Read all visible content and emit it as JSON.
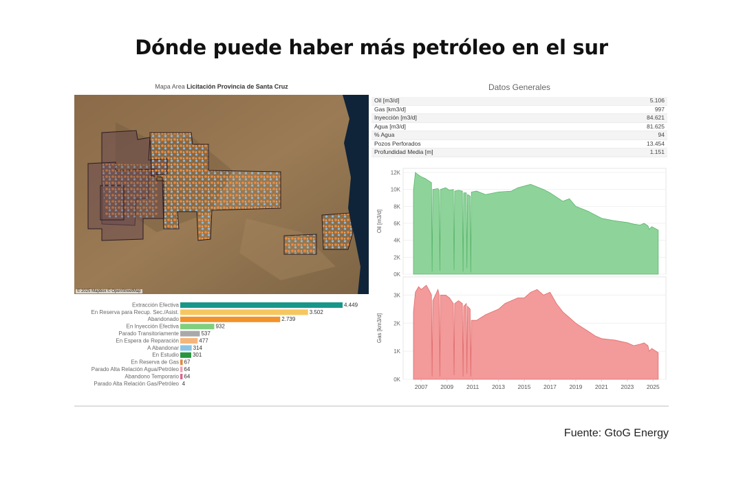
{
  "title": "Dónde puede haber más petróleo en el sur",
  "map": {
    "title_prefix": "Mapa Area",
    "title_bold": "Licitación Provincia de Santa Cruz",
    "credit": "© 2025 Mapbox © OpenStreetMap"
  },
  "datos": {
    "title": "Datos Generales",
    "rows": [
      {
        "label": "Oil [m3/d]",
        "value": "5.106"
      },
      {
        "label": "Gas [km3/d]",
        "value": "997"
      },
      {
        "label": "Inyección [m3/d]",
        "value": "84.621"
      },
      {
        "label": "Agua [m3/d]",
        "value": "81.625"
      },
      {
        "label": "% Agua",
        "value": "94"
      },
      {
        "label": "Pozos Perforados",
        "value": "13.454"
      },
      {
        "label": "Profundidad Media [m]",
        "value": "1.151"
      }
    ]
  },
  "source": "Fuente: GtoG Energy",
  "colors": {
    "oil_fill": "#8ed49a",
    "oil_stroke": "#58b46a",
    "gas_fill": "#f39a9a",
    "gas_stroke": "#e06a6a"
  },
  "chart_data": [
    {
      "type": "bar",
      "orientation": "horizontal",
      "categories": [
        "Extracción Efectiva",
        "En Reserva para Recup. Sec./Asist.",
        "Abandonado",
        "En Inyección Efectiva",
        "Parado Transitoriamente",
        "En Espera de Reparación",
        "A Abandonar",
        "En Estudio",
        "En Reserva de Gas",
        "Parado Alta Relación Agua/Petróleo",
        "Abandono Temporario",
        "Parado Alta Relación Gas/Petróleo"
      ],
      "values": [
        4449,
        3502,
        2739,
        932,
        537,
        477,
        314,
        301,
        67,
        64,
        64,
        4
      ],
      "value_labels": [
        "4.449",
        "3.502",
        "2.739",
        "932",
        "537",
        "477",
        "314",
        "301",
        "67",
        "64",
        "64",
        "4"
      ],
      "colors": [
        "#17968a",
        "#f6c760",
        "#f2922a",
        "#7fcf7f",
        "#a9a9a9",
        "#f5b67b",
        "#89c4e6",
        "#26963f",
        "#e8883a",
        "#f0a0b0",
        "#d9668f",
        "#ffffff"
      ]
    },
    {
      "type": "area",
      "series": [
        {
          "name": "Oil [m3/d]"
        }
      ],
      "ylabel": "Oil [m3/d]",
      "ylim": [
        0,
        12000
      ],
      "yticks": [
        {
          "v": 0,
          "label": "0K"
        },
        {
          "v": 2000,
          "label": "2K"
        },
        {
          "v": 4000,
          "label": "4K"
        },
        {
          "v": 6000,
          "label": "6K"
        },
        {
          "v": 8000,
          "label": "8K"
        },
        {
          "v": 10000,
          "label": "10K"
        },
        {
          "v": 12000,
          "label": "12K"
        }
      ],
      "x": [
        2006.4,
        2006.55,
        2006.7,
        2007.0,
        2007.3,
        2007.6,
        2007.8,
        2007.85,
        2007.9,
        2008.3,
        2008.4,
        2008.45,
        2008.5,
        2008.9,
        2009.2,
        2009.5,
        2009.55,
        2009.6,
        2009.9,
        2010.2,
        2010.25,
        2010.3,
        2010.5,
        2010.55,
        2010.6,
        2010.8,
        2010.85,
        2010.9,
        2011.3,
        2012.0,
        2013.0,
        2014.0,
        2014.5,
        2015.0,
        2015.5,
        2016.0,
        2016.5,
        2017.0,
        2018.0,
        2018.5,
        2019.0,
        2020.0,
        2020.5,
        2021.0,
        2022.0,
        2023.0,
        2023.5,
        2024.0,
        2024.3,
        2024.6,
        2024.7,
        2024.9,
        2025.4
      ],
      "y": [
        9900,
        12000,
        11800,
        11500,
        11300,
        11000,
        10800,
        300,
        10000,
        10100,
        9900,
        400,
        10000,
        10200,
        9900,
        10000,
        500,
        9800,
        9900,
        9800,
        300,
        9600,
        9600,
        700,
        9400,
        9200,
        200,
        9700,
        9800,
        9400,
        9700,
        9800,
        10200,
        10400,
        10600,
        10300,
        10000,
        9600,
        8600,
        8900,
        8000,
        7400,
        7000,
        6600,
        6300,
        6100,
        5900,
        5800,
        6000,
        5700,
        5300,
        5600,
        5200
      ]
    },
    {
      "type": "area",
      "series": [
        {
          "name": "Gas [km3/d]"
        }
      ],
      "xlabel": "",
      "ylabel": "Gas [km3/d]",
      "ylim": [
        0,
        3500
      ],
      "yticks": [
        {
          "v": 0,
          "label": "0K"
        },
        {
          "v": 1000,
          "label": "1K"
        },
        {
          "v": 2000,
          "label": "2K"
        },
        {
          "v": 3000,
          "label": "3K"
        }
      ],
      "xticks": [
        2007,
        2009,
        2011,
        2013,
        2015,
        2017,
        2019,
        2021,
        2023,
        2025
      ],
      "xlim": [
        2005.6,
        2026.0
      ],
      "x": [
        2006.4,
        2006.55,
        2006.8,
        2007.0,
        2007.4,
        2007.7,
        2007.8,
        2007.85,
        2007.9,
        2008.3,
        2008.4,
        2008.45,
        2008.5,
        2008.9,
        2009.2,
        2009.5,
        2009.55,
        2009.6,
        2009.9,
        2010.2,
        2010.25,
        2010.3,
        2010.5,
        2010.55,
        2010.6,
        2010.8,
        2010.85,
        2010.9,
        2011.3,
        2012.0,
        2012.5,
        2013.0,
        2013.5,
        2014.0,
        2014.5,
        2015.0,
        2015.5,
        2016.0,
        2016.5,
        2017.0,
        2017.5,
        2018.0,
        2018.5,
        2019.0,
        2019.5,
        2020.0,
        2020.5,
        2021.0,
        2022.0,
        2023.0,
        2023.5,
        2024.0,
        2024.3,
        2024.6,
        2024.7,
        2024.9,
        2025.4
      ],
      "y": [
        2400,
        3100,
        3300,
        3200,
        3350,
        3100,
        3000,
        100,
        2800,
        3200,
        3000,
        100,
        3000,
        3000,
        2900,
        2700,
        150,
        2700,
        2800,
        2700,
        100,
        2600,
        2700,
        200,
        2600,
        2500,
        100,
        2100,
        2100,
        2300,
        2400,
        2500,
        2700,
        2800,
        2900,
        2900,
        3100,
        3200,
        3000,
        3100,
        2700,
        2400,
        2200,
        2000,
        1850,
        1700,
        1550,
        1450,
        1400,
        1300,
        1200,
        1250,
        1300,
        1200,
        1000,
        1100,
        950
      ]
    }
  ]
}
